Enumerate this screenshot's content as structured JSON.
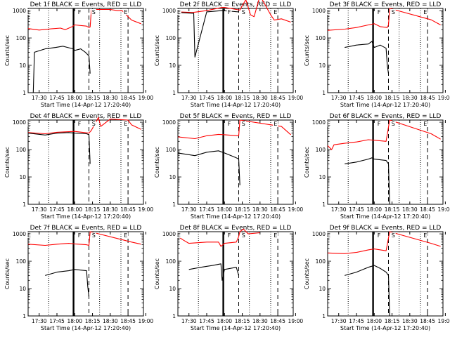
{
  "chart_data": [
    {
      "type": "line",
      "title": "Det 1f BLACK = Events, RED = LLD",
      "xlabel": "Start Time (14-Apr-12 17:20:40)",
      "ylabel": "Counts/sec",
      "xlim": [
        "17:20:40",
        "18:58"
      ],
      "ylim": [
        1,
        1200
      ],
      "yscale": "log",
      "xticks": [
        "17:30",
        "17:45",
        "18:00",
        "18:15",
        "18:30",
        "18:45",
        "19:00"
      ],
      "yticks": [
        "1",
        "10",
        "100",
        "1000"
      ],
      "markers": [
        "E",
        "F",
        "S",
        "E"
      ],
      "series": [
        {
          "color": "#ff0000",
          "x": [
            "17:20:40",
            "17:30",
            "17:40",
            "17:48",
            "17:52",
            "17:58",
            "18:00",
            "18:10",
            "18:12",
            "18:13",
            "18:14",
            "18:17",
            "18:30",
            "18:36",
            "18:40",
            "18:45",
            "18:48",
            "18:56"
          ],
          "y": [
            220,
            195,
            215,
            230,
            200,
            260,
            300,
            270,
            240,
            250,
            1050,
            1100,
            1100,
            1000,
            1000,
            600,
            450,
            330
          ]
        },
        {
          "color": "#000000",
          "x": [
            "17:25",
            "17:26",
            "17:35",
            "17:44",
            "17:50",
            "17:54",
            "17:59",
            "18:00",
            "18:05",
            "18:09",
            "18:12",
            "18:13"
          ],
          "y": [
            1,
            30,
            40,
            45,
            50,
            45,
            40,
            35,
            40,
            30,
            22,
            5
          ]
        }
      ]
    },
    {
      "type": "line",
      "title": "Det 2f BLACK = Events, RED = LLD",
      "xlabel": "Start Time (14-Apr-12 17:20:40)",
      "ylabel": "Counts/sec",
      "xlim": [
        "17:20:40",
        "18:58"
      ],
      "ylim": [
        1,
        1200
      ],
      "yscale": "log",
      "xticks": [
        "17:30",
        "17:45",
        "18:00",
        "18:15",
        "18:30",
        "18:45",
        "19:00"
      ],
      "yticks": [
        "1",
        "10",
        "100",
        "1000"
      ],
      "markers": [
        "E",
        "F",
        "S",
        "E"
      ],
      "series": [
        {
          "color": "#ff0000",
          "x": [
            "17:20:40",
            "17:33",
            "17:45",
            "17:58",
            "18:00",
            "18:10",
            "18:13",
            "18:15",
            "18:18",
            "18:22",
            "18:25",
            "18:30",
            "18:39",
            "18:42",
            "18:48",
            "18:56"
          ],
          "y": [
            900,
            850,
            1000,
            1300,
            1300,
            1100,
            1050,
            1500,
            2500,
            700,
            600,
            3500,
            700,
            450,
            500,
            380
          ]
        },
        {
          "color": "#000000",
          "x": [
            "17:20:40",
            "17:34",
            "17:35",
            "17:45",
            "17:58",
            "18:05",
            "18:12"
          ],
          "y": [
            850,
            800,
            20,
            900,
            1000,
            950,
            900
          ]
        }
      ]
    },
    {
      "type": "line",
      "title": "Det 3f BLACK = Events, RED = LLD",
      "xlabel": "Start Time (14-Apr-12 17:20:40)",
      "ylabel": "Counts/sec",
      "xlim": [
        "17:20:40",
        "18:58"
      ],
      "ylim": [
        1,
        1200
      ],
      "yscale": "log",
      "xticks": [
        "17:30",
        "17:45",
        "18:00",
        "18:15",
        "18:30",
        "18:45",
        "19:00"
      ],
      "yticks": [
        "1",
        "10",
        "100",
        "1000"
      ],
      "markers": [
        "E",
        "F",
        "S",
        "E"
      ],
      "series": [
        {
          "color": "#ff0000",
          "x": [
            "17:20:40",
            "17:35",
            "17:45",
            "17:55",
            "18:00",
            "18:05",
            "18:11",
            "18:12",
            "18:13",
            "18:48",
            "18:56"
          ],
          "y": [
            190,
            210,
            240,
            300,
            330,
            260,
            240,
            300,
            1200,
            460,
            300
          ]
        },
        {
          "color": "#000000",
          "x": [
            "17:35",
            "17:45",
            "17:55",
            "17:58",
            "18:00",
            "18:05",
            "18:10",
            "18:11",
            "18:12"
          ],
          "y": [
            45,
            55,
            60,
            75,
            45,
            55,
            42,
            10,
            5
          ]
        }
      ]
    },
    {
      "type": "line",
      "title": "Det 4f BLACK = Events, RED = LLD",
      "xlabel": "Start Time (14-Apr-12 17:20:40)",
      "ylabel": "Counts/sec",
      "xlim": [
        "17:20:40",
        "18:58"
      ],
      "ylim": [
        1,
        1200
      ],
      "yscale": "log",
      "xticks": [
        "17:30",
        "17:45",
        "18:00",
        "18:15",
        "18:30",
        "18:45",
        "19:00"
      ],
      "yticks": [
        "1",
        "10",
        "100",
        "1000"
      ],
      "markers": [
        "E",
        "F",
        "S",
        "E"
      ],
      "series": [
        {
          "color": "#ff0000",
          "x": [
            "17:20:40",
            "17:35",
            "17:45",
            "17:55",
            "18:00",
            "18:12",
            "18:14",
            "18:20",
            "18:22",
            "18:30",
            "18:45",
            "18:48",
            "18:56"
          ],
          "y": [
            420,
            380,
            430,
            450,
            460,
            400,
            500,
            1500,
            700,
            1300,
            1200,
            800,
            550
          ]
        },
        {
          "color": "#000000",
          "x": [
            "17:20:40",
            "17:35",
            "17:45",
            "17:55",
            "18:00",
            "18:10",
            "18:12",
            "18:13"
          ],
          "y": [
            400,
            340,
            400,
            420,
            400,
            380,
            350,
            30
          ]
        }
      ]
    },
    {
      "type": "line",
      "title": "Det 5f BLACK = Events, RED = LLD",
      "xlabel": "Start Time (14-Apr-12 17:20:40)",
      "ylabel": "Counts/sec",
      "xlim": [
        "17:20:40",
        "18:58"
      ],
      "ylim": [
        1,
        1200
      ],
      "yscale": "log",
      "xticks": [
        "17:30",
        "17:45",
        "18:00",
        "18:15",
        "18:30",
        "18:45",
        "19:00"
      ],
      "yticks": [
        "1",
        "10",
        "100",
        "1000"
      ],
      "markers": [
        "E",
        "F",
        "S",
        "E"
      ],
      "series": [
        {
          "color": "#ff0000",
          "x": [
            "17:20:40",
            "17:35",
            "17:45",
            "17:55",
            "18:00",
            "18:12",
            "18:13",
            "18:48",
            "18:56"
          ],
          "y": [
            290,
            250,
            320,
            360,
            350,
            320,
            1200,
            700,
            350
          ]
        },
        {
          "color": "#000000",
          "x": [
            "17:20:40",
            "17:35",
            "17:45",
            "17:55",
            "18:00",
            "18:10",
            "18:12",
            "18:13"
          ],
          "y": [
            75,
            60,
            80,
            90,
            75,
            50,
            45,
            5
          ]
        }
      ]
    },
    {
      "type": "line",
      "title": "Det 6f BLACK = Events, RED = LLD",
      "xlabel": "Start Time (14-Apr-12 17:20:40)",
      "ylabel": "Counts/sec",
      "xlim": [
        "17:20:40",
        "18:58"
      ],
      "ylim": [
        1,
        1200
      ],
      "yscale": "log",
      "xticks": [
        "17:30",
        "17:45",
        "18:00",
        "18:15",
        "18:30",
        "18:45",
        "19:00"
      ],
      "yticks": [
        "1",
        "10",
        "100",
        "1000"
      ],
      "markers": [
        "E",
        "F",
        "S",
        "E"
      ],
      "series": [
        {
          "color": "#ff0000",
          "x": [
            "17:20:40",
            "17:24",
            "17:26",
            "17:35",
            "17:45",
            "17:55",
            "18:00",
            "18:10",
            "18:13",
            "18:48",
            "18:56"
          ],
          "y": [
            140,
            100,
            150,
            170,
            190,
            230,
            220,
            200,
            1200,
            380,
            240
          ]
        },
        {
          "color": "#000000",
          "x": [
            "17:35",
            "17:45",
            "17:55",
            "17:58",
            "18:00",
            "18:10",
            "18:12",
            "18:13"
          ],
          "y": [
            30,
            35,
            45,
            50,
            45,
            40,
            30,
            1
          ]
        }
      ]
    },
    {
      "type": "line",
      "title": "Det 7f BLACK = Events, RED = LLD",
      "xlabel": "Start Time (14-Apr-12 17:20:40)",
      "ylabel": "Counts/sec",
      "xlim": [
        "17:20:40",
        "18:58"
      ],
      "ylim": [
        1,
        1200
      ],
      "yscale": "log",
      "xticks": [
        "17:30",
        "17:45",
        "18:00",
        "18:15",
        "18:30",
        "18:45",
        "19:00"
      ],
      "yticks": [
        "1",
        "10",
        "100",
        "1000"
      ],
      "markers": [
        "E",
        "F",
        "S",
        "E"
      ],
      "series": [
        {
          "color": "#ff0000",
          "x": [
            "17:20:40",
            "17:35",
            "17:45",
            "17:55",
            "18:00",
            "18:10",
            "18:12",
            "18:13",
            "18:48",
            "18:56"
          ],
          "y": [
            420,
            380,
            420,
            450,
            430,
            400,
            380,
            1200,
            500,
            420
          ]
        },
        {
          "color": "#000000",
          "x": [
            "17:35",
            "17:45",
            "17:55",
            "18:00",
            "18:10",
            "18:11",
            "18:12"
          ],
          "y": [
            30,
            40,
            45,
            50,
            45,
            12,
            5
          ]
        }
      ]
    },
    {
      "type": "line",
      "title": "Det 8f BLACK = Events, RED = LLD",
      "xlabel": "Start Time (14-Apr-12 17:20:40)",
      "ylabel": "Counts/sec",
      "xlim": [
        "17:20:40",
        "18:58"
      ],
      "ylim": [
        1,
        1200
      ],
      "yscale": "log",
      "xticks": [
        "17:30",
        "17:45",
        "18:00",
        "18:15",
        "18:30",
        "18:45",
        "19:00"
      ],
      "yticks": [
        "1",
        "10",
        "100",
        "1000"
      ],
      "markers": [
        "E",
        "F",
        "S",
        "E"
      ],
      "series": [
        {
          "color": "#ff0000",
          "x": [
            "17:20:40",
            "17:25",
            "17:30",
            "17:45",
            "17:55",
            "17:57",
            "18:00",
            "18:10",
            "18:12",
            "18:13",
            "18:16",
            "18:20",
            "18:30"
          ],
          "y": [
            800,
            600,
            450,
            500,
            500,
            350,
            450,
            500,
            800,
            1200,
            1500,
            1000,
            1100
          ]
        },
        {
          "color": "#000000",
          "x": [
            "17:30",
            "17:40",
            "17:50",
            "17:57",
            "17:58",
            "18:00",
            "18:10",
            "18:12"
          ],
          "y": [
            50,
            60,
            70,
            80,
            20,
            50,
            60,
            30
          ]
        }
      ]
    },
    {
      "type": "line",
      "title": "Det 9f BLACK = Events, RED = LLD",
      "xlabel": "Start Time (14-Apr-12 17:20:40)",
      "ylabel": "Counts/sec",
      "xlim": [
        "17:20:40",
        "18:58"
      ],
      "ylim": [
        1,
        1200
      ],
      "yscale": "log",
      "xticks": [
        "17:30",
        "17:45",
        "18:00",
        "18:15",
        "18:30",
        "18:45",
        "19:00"
      ],
      "yticks": [
        "1",
        "10",
        "100",
        "1000"
      ],
      "markers": [
        "E",
        "F",
        "S",
        "E"
      ],
      "series": [
        {
          "color": "#ff0000",
          "x": [
            "17:20:40",
            "17:35",
            "17:45",
            "17:55",
            "18:00",
            "18:10",
            "18:13",
            "18:48",
            "18:56"
          ],
          "y": [
            200,
            190,
            210,
            260,
            280,
            240,
            1200,
            450,
            350
          ]
        },
        {
          "color": "#000000",
          "x": [
            "17:35",
            "17:45",
            "17:55",
            "18:00",
            "18:05",
            "18:10",
            "18:12",
            "18:13"
          ],
          "y": [
            30,
            40,
            60,
            70,
            55,
            40,
            30,
            1
          ]
        }
      ]
    }
  ]
}
